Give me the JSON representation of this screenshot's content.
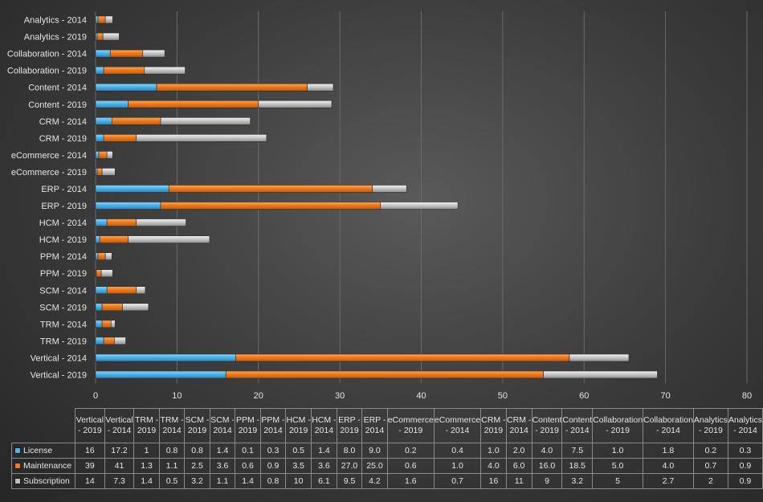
{
  "chart_data": {
    "type": "bar",
    "orientation": "horizontal",
    "stacked": true,
    "categories": [
      "Vertical - 2019",
      "Vertical - 2014",
      "TRM - 2019",
      "TRM - 2014",
      "SCM - 2019",
      "SCM - 2014",
      "PPM - 2019",
      "PPM - 2014",
      "HCM - 2019",
      "HCM - 2014",
      "ERP - 2019",
      "ERP - 2014",
      "eCommerce - 2019",
      "eCommerce - 2014",
      "CRM - 2019",
      "CRM - 2014",
      "Content - 2019",
      "Content - 2014",
      "Collaboration - 2019",
      "Collaboration - 2014",
      "Analytics - 2019",
      "Analytics - 2014"
    ],
    "table_headers": [
      "Vertical - 2019",
      "Vertical - 2014",
      "TRM - 2019",
      "TRM - 2014",
      "SCM - 2019",
      "SCM - 2014",
      "PPM - 2019",
      "PPM - 2014",
      "HCM - 2019",
      "HCM - 2014",
      "ERP - 2019",
      "ERP - 2014",
      "eCommerce - 2019",
      "eCommerce - 2014",
      "CRM - 2019",
      "CRM - 2014",
      "Content - 2019",
      "Content - 2014",
      "Collaboration - 2019",
      "Collaboration - 2014",
      "Analytics - 2019",
      "Analytics - 2014"
    ],
    "series": [
      {
        "name": "License",
        "color": "#4fb3e8",
        "values": [
          16,
          17.2,
          1,
          0.8,
          0.8,
          1.4,
          0.1,
          0.3,
          0.5,
          1.4,
          8.0,
          9.0,
          0.2,
          0.4,
          1.0,
          2.0,
          4.0,
          7.5,
          1.0,
          1.8,
          0.2,
          0.3
        ],
        "display": [
          "16",
          "17.2",
          "1",
          "0.8",
          "0.8",
          "1.4",
          "0.1",
          "0.3",
          "0.5",
          "1.4",
          "8.0",
          "9.0",
          "0.2",
          "0.4",
          "1.0",
          "2.0",
          "4.0",
          "7.5",
          "1.0",
          "1.8",
          "0.2",
          "0.3"
        ]
      },
      {
        "name": "Maintenance",
        "color": "#f07a1c",
        "values": [
          39,
          41,
          1.3,
          1.1,
          2.5,
          3.6,
          0.6,
          0.9,
          3.5,
          3.6,
          27.0,
          25.0,
          0.6,
          1.0,
          4.0,
          6.0,
          16.0,
          18.5,
          5.0,
          4.0,
          0.7,
          0.9
        ],
        "display": [
          "39",
          "41",
          "1.3",
          "1.1",
          "2.5",
          "3.6",
          "0.6",
          "0.9",
          "3.5",
          "3.6",
          "27.0",
          "25.0",
          "0.6",
          "1.0",
          "4.0",
          "6.0",
          "16.0",
          "18.5",
          "5.0",
          "4.0",
          "0.7",
          "0.9"
        ]
      },
      {
        "name": "Subscription",
        "color": "#bfbfbf",
        "values": [
          14,
          7.3,
          1.4,
          0.5,
          3.2,
          1.1,
          1.4,
          0.8,
          10,
          6.1,
          9.5,
          4.2,
          1.6,
          0.7,
          16,
          11,
          9,
          3.2,
          5,
          2.7,
          2,
          0.9
        ],
        "display": [
          "14",
          "7.3",
          "1.4",
          "0.5",
          "3.2",
          "1.1",
          "1.4",
          "0.8",
          "10",
          "6.1",
          "9.5",
          "4.2",
          "1.6",
          "0.7",
          "16",
          "11",
          "9",
          "3.2",
          "5",
          "2.7",
          "2",
          "0.9"
        ]
      }
    ],
    "xlim": [
      0,
      80
    ],
    "xticks": [
      0,
      10,
      20,
      30,
      40,
      50,
      60,
      70,
      80
    ],
    "grid": true,
    "legend": "data-table"
  }
}
